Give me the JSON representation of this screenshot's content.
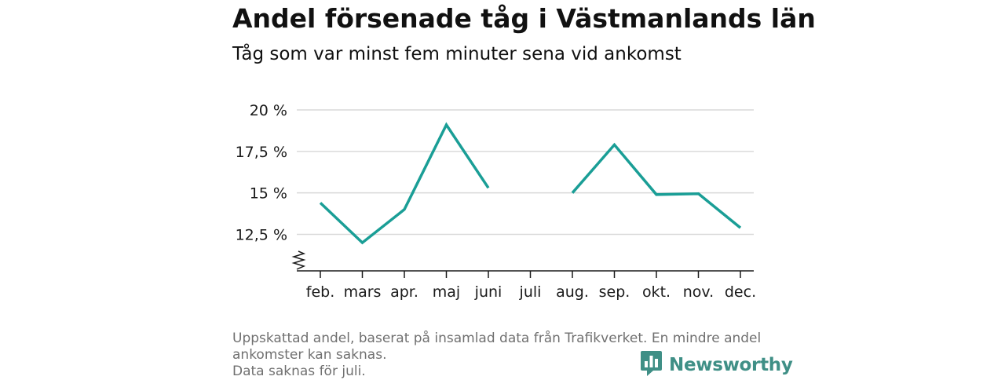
{
  "header": {
    "title": "Andel försenade tåg i Västmanlands län",
    "subtitle": "Tåg som var minst fem minuter sena vid ankomst"
  },
  "footer": {
    "note_1": "Uppskattad andel, baserat på insamlad data från Trafikverket. En mindre andel ankomster kan saknas.",
    "note_2": "Data saknas för juli."
  },
  "brand": {
    "name": "Newsworthy",
    "icon": "newsworthy-logo-icon",
    "color": "#3f8f86"
  },
  "chart_data": {
    "type": "line",
    "title": "Andel försenade tåg i Västmanlands län",
    "subtitle": "Tåg som var minst fem minuter sena vid ankomst",
    "categories": [
      "feb.",
      "mars",
      "apr.",
      "maj",
      "juni",
      "juli",
      "aug.",
      "sep.",
      "okt.",
      "nov.",
      "dec."
    ],
    "series": [
      {
        "values": [
          14.4,
          12.0,
          14.0,
          19.1,
          15.3,
          null,
          15.0,
          17.9,
          14.9,
          14.95,
          12.9
        ],
        "color": "#1a9e96"
      }
    ],
    "ylim": [
      10.3,
      20
    ],
    "yticks": [
      12.5,
      15,
      17.5,
      20
    ],
    "ytick_labels": [
      "12,5 %",
      "15 %",
      "17,5 %",
      "20 %"
    ],
    "axis_break": true,
    "grid": "horizontal",
    "legend": "none",
    "colors": {
      "line": "#1a9e96",
      "grid": "#d9d9d9",
      "axis": "#1a1a1a"
    }
  }
}
